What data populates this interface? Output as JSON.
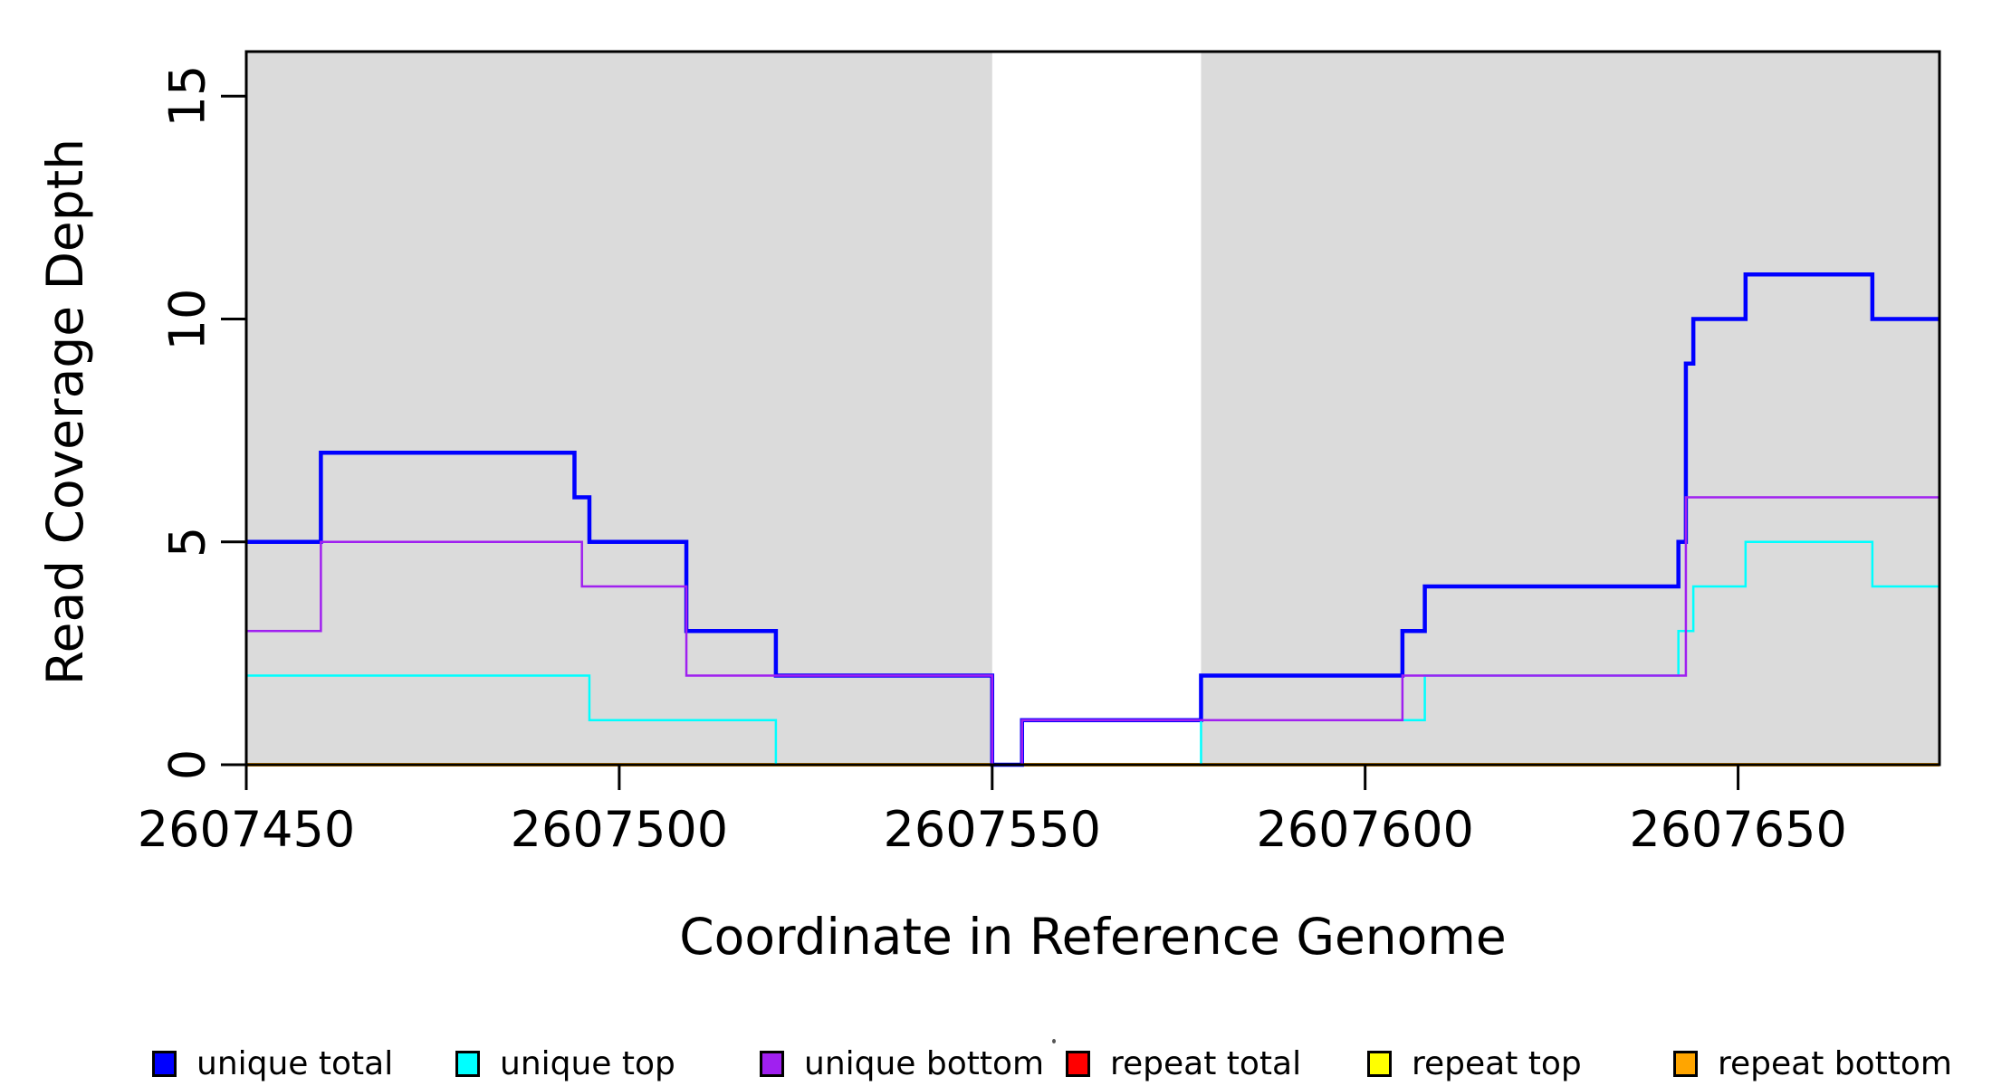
{
  "chart_data": {
    "type": "line",
    "subtype": "step-coverage",
    "xlabel": "Coordinate in Reference Genome",
    "ylabel": "Read Coverage Depth",
    "xlim": [
      2607450,
      2607677
    ],
    "ylim": [
      0,
      16
    ],
    "grid": "off",
    "x_ticks": [
      2607450,
      2607500,
      2607550,
      2607600,
      2607650
    ],
    "x_tick_labels": [
      "2607450",
      "2607500",
      "2607550",
      "2607600",
      "2607650"
    ],
    "y_ticks": [
      0,
      5,
      10,
      15
    ],
    "y_tick_labels": [
      "0",
      "5",
      "10",
      "15"
    ],
    "plot_bg_color": "#ffffff",
    "shaded_band_color": "#DBDBDB",
    "background_bands": [
      {
        "from": 2607450,
        "to": 2607550
      },
      {
        "from": 2607578,
        "to": 2607677
      }
    ],
    "series": [
      {
        "name": "repeat total",
        "color": "#FF0000",
        "width": 2.5,
        "steps": [
          [
            2607450,
            0
          ],
          [
            2607677,
            0
          ]
        ]
      },
      {
        "name": "repeat top",
        "color": "#FFFF00",
        "width": 2.5,
        "steps": [
          [
            2607450,
            0
          ],
          [
            2607677,
            0
          ]
        ]
      },
      {
        "name": "repeat bottom",
        "color": "#FFA500",
        "width": 4,
        "steps": [
          [
            2607450,
            0
          ],
          [
            2607677,
            0
          ]
        ]
      },
      {
        "name": "unique total",
        "color": "#0000FF",
        "width": 4.5,
        "steps": [
          [
            2607450,
            5
          ],
          [
            2607460,
            7
          ],
          [
            2607494,
            6
          ],
          [
            2607496,
            5
          ],
          [
            2607509,
            3
          ],
          [
            2607521,
            2
          ],
          [
            2607550,
            0
          ],
          [
            2607554,
            1
          ],
          [
            2607578,
            2
          ],
          [
            2607605,
            3
          ],
          [
            2607608,
            4
          ],
          [
            2607642,
            5
          ],
          [
            2607643,
            9
          ],
          [
            2607644,
            10
          ],
          [
            2607651,
            11
          ],
          [
            2607668,
            10
          ],
          [
            2607677,
            10
          ]
        ]
      },
      {
        "name": "unique top",
        "color": "#00FFFF",
        "width": 2.5,
        "steps": [
          [
            2607450,
            2
          ],
          [
            2607496,
            1
          ],
          [
            2607521,
            0
          ],
          [
            2607578,
            1
          ],
          [
            2607608,
            2
          ],
          [
            2607642,
            3
          ],
          [
            2607644,
            4
          ],
          [
            2607651,
            5
          ],
          [
            2607668,
            4
          ],
          [
            2607677,
            4
          ]
        ]
      },
      {
        "name": "unique bottom",
        "color": "#A020F0",
        "width": 2.5,
        "steps": [
          [
            2607450,
            3
          ],
          [
            2607460,
            5
          ],
          [
            2607495,
            4
          ],
          [
            2607509,
            2
          ],
          [
            2607550,
            0
          ],
          [
            2607554,
            1
          ],
          [
            2607605,
            2
          ],
          [
            2607643,
            6
          ],
          [
            2607677,
            6
          ]
        ]
      }
    ],
    "legend": {
      "position": "bottom",
      "items": [
        {
          "label": "unique total",
          "color": "#0000FF"
        },
        {
          "label": "unique top",
          "color": "#00FFFF"
        },
        {
          "label": "unique bottom",
          "color": "#A020F0"
        },
        {
          "label": "repeat total",
          "color": "#FF0000"
        },
        {
          "label": "repeat top",
          "color": "#FFFF00"
        },
        {
          "label": "repeat bottom",
          "color": "#FFA500"
        }
      ]
    },
    "axis_color": "#000000"
  }
}
